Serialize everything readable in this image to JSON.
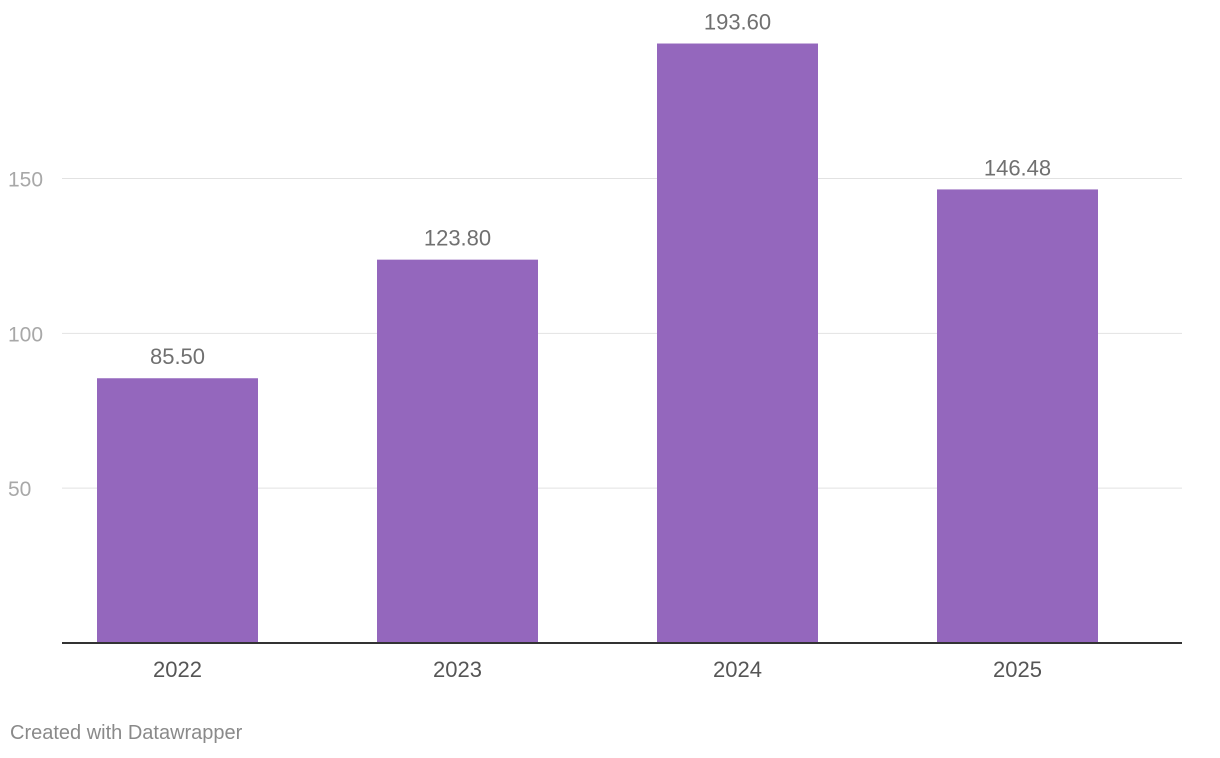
{
  "chart_data": {
    "type": "bar",
    "categories": [
      "2022",
      "2023",
      "2024",
      "2025"
    ],
    "values": [
      85.5,
      123.8,
      193.6,
      146.48
    ],
    "value_labels": [
      "85.50",
      "123.80",
      "193.60",
      "146.48"
    ],
    "title": "",
    "xlabel": "",
    "ylabel": "",
    "ylim": [
      0,
      200
    ],
    "yticks": [
      50,
      100,
      150
    ],
    "grid": true,
    "legend": "none",
    "bar_color": "#9467bd"
  },
  "footer": {
    "credit": "Created with Datawrapper"
  }
}
